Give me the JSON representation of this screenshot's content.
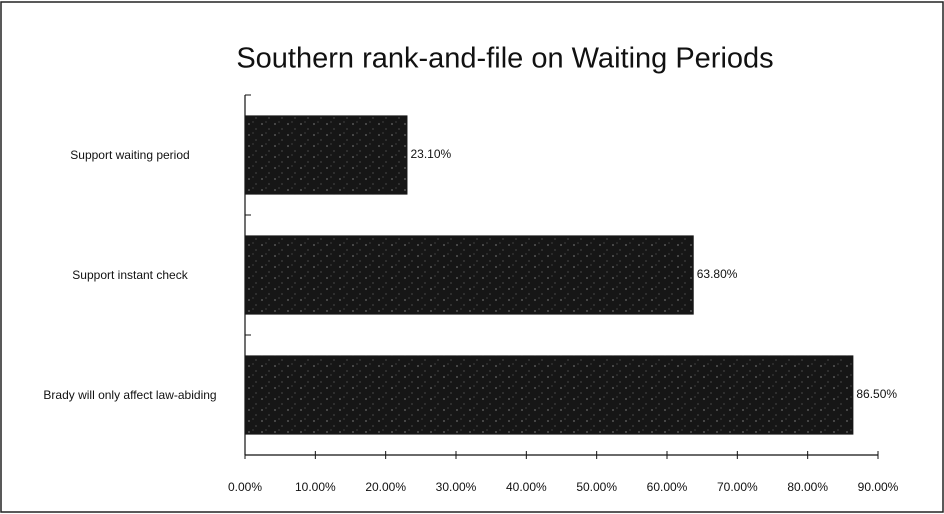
{
  "chart_data": {
    "type": "barh",
    "title": "Southern rank-and-file on Waiting Periods",
    "categories": [
      "Support waiting period",
      "Support instant check",
      "Brady will only affect law-abiding"
    ],
    "values": [
      23.1,
      63.8,
      86.5
    ],
    "value_labels": [
      "23.10%",
      "63.80%",
      "86.50%"
    ],
    "color": "#161616",
    "xlim": [
      0,
      90
    ],
    "xticks": [
      {
        "value": 0,
        "label": "0.00%"
      },
      {
        "value": 10,
        "label": "10.00%"
      },
      {
        "value": 20,
        "label": "20.00%"
      },
      {
        "value": 30,
        "label": "30.00%"
      },
      {
        "value": 40,
        "label": "40.00%"
      },
      {
        "value": 50,
        "label": "50.00%"
      },
      {
        "value": 60,
        "label": "60.00%"
      },
      {
        "value": 70,
        "label": "70.00%"
      },
      {
        "value": 80,
        "label": "80.00%"
      },
      {
        "value": 90,
        "label": "90.00%"
      }
    ],
    "grid": false
  }
}
